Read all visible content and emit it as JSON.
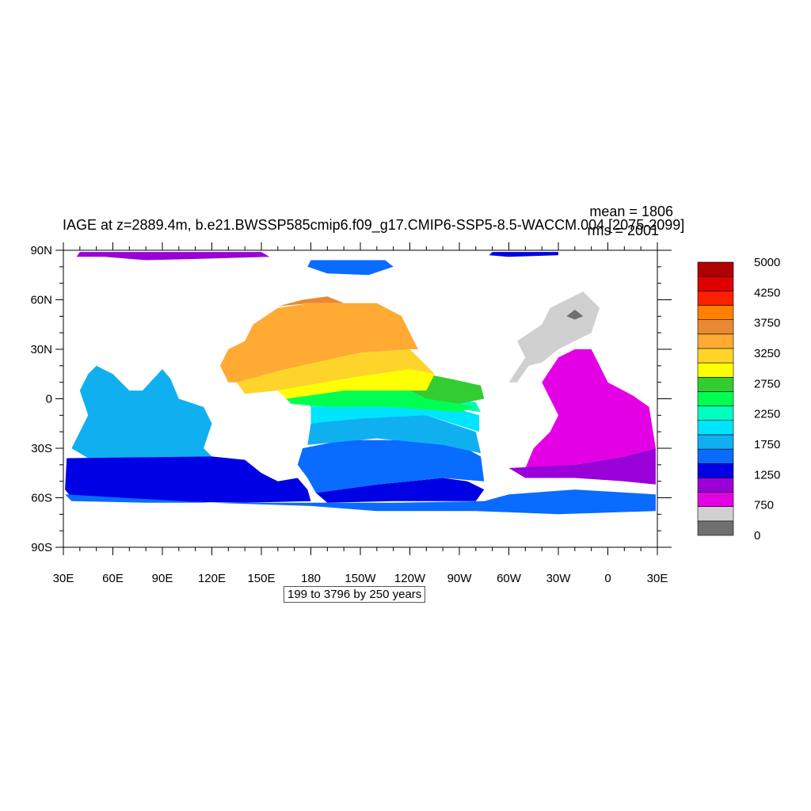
{
  "chart_data": {
    "type": "heatmap",
    "title": "IAGE at z=2889.4m, b.e21.BWSSP585cmip6.f09_g17.CMIP6-SSP5-8.5-WACCM.004 [2075-2099]",
    "stats": {
      "mean": "mean = 1806",
      "rms": "rms = 2001"
    },
    "contour_info": "199 to 3796 by 250 years",
    "x_ticks": [
      "30E",
      "60E",
      "90E",
      "120E",
      "150E",
      "180",
      "150W",
      "120W",
      "90W",
      "60W",
      "30W",
      "0",
      "30E"
    ],
    "y_ticks": [
      "90N",
      "60N",
      "30N",
      "0",
      "30S",
      "60S",
      "90S"
    ],
    "xlim_degE": [
      30,
      390
    ],
    "ylim_deg": [
      -90,
      90
    ],
    "colorbar": {
      "colors": [
        "#6f6f6f",
        "#d0d0d0",
        "#e400e4",
        "#9a00d8",
        "#0000e4",
        "#0a6bff",
        "#10b0f0",
        "#00e5ff",
        "#00ffc0",
        "#00ff50",
        "#33cc33",
        "#ffff00",
        "#ffd42a",
        "#ffaa33",
        "#e88a33",
        "#ff8000",
        "#ff2000",
        "#e00000",
        "#b00000"
      ],
      "labels": [
        "0",
        "750",
        "1250",
        "1750",
        "2250",
        "2750",
        "3250",
        "3750",
        "4250",
        "5000"
      ]
    },
    "regions": [
      {
        "name": "arctic-band",
        "color": "#9a00d8",
        "points": [
          [
            40,
            89
          ],
          [
            150,
            89
          ],
          [
            155,
            86
          ],
          [
            120,
            85
          ],
          [
            80,
            84
          ],
          [
            55,
            86
          ],
          [
            38,
            86
          ]
        ]
      },
      {
        "name": "arctic-blue",
        "color": "#0000e4",
        "points": [
          [
            290,
            89
          ],
          [
            330,
            89
          ],
          [
            330,
            87
          ],
          [
            300,
            86
          ],
          [
            288,
            87
          ]
        ]
      },
      {
        "name": "arctic-lightblue",
        "color": "#0a6bff",
        "points": [
          [
            180,
            84
          ],
          [
            225,
            84
          ],
          [
            230,
            80
          ],
          [
            215,
            75
          ],
          [
            190,
            76
          ],
          [
            178,
            80
          ]
        ]
      },
      {
        "name": "indian-ocean",
        "color": "#10b0f0",
        "points": [
          [
            50,
            20
          ],
          [
            60,
            15
          ],
          [
            70,
            5
          ],
          [
            78,
            5
          ],
          [
            90,
            18
          ],
          [
            95,
            12
          ],
          [
            100,
            0
          ],
          [
            115,
            -5
          ],
          [
            120,
            -15
          ],
          [
            115,
            -30
          ],
          [
            120,
            -35
          ],
          [
            80,
            -36
          ],
          [
            45,
            -36
          ],
          [
            35,
            -30
          ],
          [
            40,
            -20
          ],
          [
            45,
            -10
          ],
          [
            40,
            5
          ],
          [
            45,
            15
          ]
        ]
      },
      {
        "name": "southern-indian-blue",
        "color": "#0000e4",
        "points": [
          [
            32,
            -36
          ],
          [
            120,
            -35
          ],
          [
            140,
            -37
          ],
          [
            150,
            -45
          ],
          [
            160,
            -50
          ],
          [
            172,
            -48
          ],
          [
            178,
            -55
          ],
          [
            180,
            -62
          ],
          [
            140,
            -63
          ],
          [
            80,
            -62
          ],
          [
            35,
            -60
          ],
          [
            31,
            -55
          ]
        ]
      },
      {
        "name": "south-pacific-deep-blue",
        "color": "#0000e4",
        "points": [
          [
            183,
            -57
          ],
          [
            220,
            -52
          ],
          [
            260,
            -48
          ],
          [
            275,
            -50
          ],
          [
            285,
            -55
          ],
          [
            280,
            -62
          ],
          [
            230,
            -62
          ],
          [
            190,
            -63
          ]
        ]
      },
      {
        "name": "southern-outer-lightblue",
        "color": "#0a6bff",
        "points": [
          [
            31,
            -58
          ],
          [
            120,
            -63
          ],
          [
            180,
            -65
          ],
          [
            220,
            -68
          ],
          [
            280,
            -68
          ],
          [
            330,
            -70
          ],
          [
            389,
            -68
          ],
          [
            389,
            -58
          ],
          [
            340,
            -55
          ],
          [
            300,
            -58
          ],
          [
            285,
            -62
          ],
          [
            230,
            -63
          ],
          [
            180,
            -63
          ],
          [
            80,
            -63
          ],
          [
            35,
            -62
          ]
        ]
      },
      {
        "name": "south-pacific-mid-blue",
        "color": "#0a6bff",
        "points": [
          [
            175,
            -30
          ],
          [
            200,
            -25
          ],
          [
            240,
            -25
          ],
          [
            270,
            -28
          ],
          [
            283,
            -35
          ],
          [
            285,
            -50
          ],
          [
            260,
            -48
          ],
          [
            220,
            -52
          ],
          [
            183,
            -57
          ],
          [
            178,
            -48
          ],
          [
            172,
            -40
          ]
        ]
      },
      {
        "name": "south-pacific-sky",
        "color": "#10b0f0",
        "points": [
          [
            180,
            -15
          ],
          [
            210,
            -10
          ],
          [
            250,
            -10
          ],
          [
            280,
            -20
          ],
          [
            283,
            -33
          ],
          [
            260,
            -28
          ],
          [
            220,
            -24
          ],
          [
            178,
            -28
          ]
        ]
      },
      {
        "name": "tropical-cyan",
        "color": "#00e5ff",
        "points": [
          [
            180,
            -5
          ],
          [
            230,
            -3
          ],
          [
            265,
            -5
          ],
          [
            282,
            -10
          ],
          [
            282,
            -20
          ],
          [
            250,
            -10
          ],
          [
            210,
            -12
          ],
          [
            180,
            -15
          ]
        ]
      },
      {
        "name": "tropical-teal",
        "color": "#00ffc0",
        "points": [
          [
            175,
            0
          ],
          [
            220,
            2
          ],
          [
            260,
            0
          ],
          [
            280,
            -2
          ],
          [
            283,
            -8
          ],
          [
            260,
            -5
          ],
          [
            230,
            -3
          ],
          [
            180,
            -5
          ]
        ]
      },
      {
        "name": "eastern-pacific-green",
        "color": "#33cc33",
        "points": [
          [
            250,
            15
          ],
          [
            265,
            12
          ],
          [
            283,
            8
          ],
          [
            285,
            0
          ],
          [
            270,
            -3
          ],
          [
            250,
            0
          ],
          [
            240,
            5
          ]
        ]
      },
      {
        "name": "equatorial-bright-green",
        "color": "#00ff50",
        "points": [
          [
            165,
            0
          ],
          [
            200,
            5
          ],
          [
            240,
            5
          ],
          [
            250,
            0
          ],
          [
            270,
            -3
          ],
          [
            280,
            -5
          ],
          [
            270,
            -8
          ],
          [
            230,
            -5
          ],
          [
            190,
            -5
          ],
          [
            168,
            -3
          ]
        ]
      },
      {
        "name": "pacific-yellow",
        "color": "#ffff00",
        "points": [
          [
            160,
            5
          ],
          [
            200,
            12
          ],
          [
            240,
            18
          ],
          [
            255,
            15
          ],
          [
            250,
            5
          ],
          [
            240,
            5
          ],
          [
            200,
            5
          ],
          [
            165,
            0
          ]
        ]
      },
      {
        "name": "pacific-gold",
        "color": "#ffd42a",
        "points": [
          [
            135,
            10
          ],
          [
            165,
            18
          ],
          [
            210,
            28
          ],
          [
            240,
            30
          ],
          [
            250,
            20
          ],
          [
            255,
            15
          ],
          [
            240,
            18
          ],
          [
            200,
            12
          ],
          [
            160,
            5
          ],
          [
            140,
            3
          ]
        ]
      },
      {
        "name": "north-pacific-orange",
        "color": "#ffaa33",
        "points": [
          [
            130,
            10
          ],
          [
            125,
            20
          ],
          [
            130,
            30
          ],
          [
            140,
            35
          ],
          [
            145,
            45
          ],
          [
            160,
            55
          ],
          [
            180,
            58
          ],
          [
            200,
            58
          ],
          [
            220,
            58
          ],
          [
            235,
            50
          ],
          [
            240,
            40
          ],
          [
            245,
            30
          ],
          [
            240,
            30
          ],
          [
            210,
            28
          ],
          [
            165,
            18
          ],
          [
            135,
            10
          ]
        ]
      },
      {
        "name": "north-pacific-deep-orange",
        "color": "#e88a33",
        "points": [
          [
            160,
            56
          ],
          [
            175,
            60
          ],
          [
            190,
            62
          ],
          [
            200,
            58
          ],
          [
            180,
            58
          ]
        ]
      },
      {
        "name": "north-atlantic-gray",
        "color": "#d0d0d0",
        "points": [
          [
            300,
            10
          ],
          [
            310,
            25
          ],
          [
            305,
            35
          ],
          [
            320,
            45
          ],
          [
            325,
            55
          ],
          [
            335,
            60
          ],
          [
            345,
            65
          ],
          [
            355,
            55
          ],
          [
            350,
            40
          ],
          [
            340,
            35
          ],
          [
            330,
            30
          ],
          [
            320,
            22
          ],
          [
            312,
            20
          ],
          [
            305,
            10
          ]
        ]
      },
      {
        "name": "arctic-gray-patch",
        "color": "#6f6f6f",
        "points": [
          [
            335,
            50
          ],
          [
            340,
            54
          ],
          [
            345,
            50
          ],
          [
            340,
            48
          ]
        ]
      },
      {
        "name": "south-atlantic-magenta",
        "color": "#e400e4",
        "points": [
          [
            320,
            10
          ],
          [
            330,
            25
          ],
          [
            340,
            30
          ],
          [
            350,
            30
          ],
          [
            355,
            20
          ],
          [
            360,
            10
          ],
          [
            375,
            2
          ],
          [
            385,
            -5
          ],
          [
            389,
            -30
          ],
          [
            370,
            -35
          ],
          [
            340,
            -40
          ],
          [
            310,
            -42
          ],
          [
            315,
            -30
          ],
          [
            325,
            -20
          ],
          [
            330,
            -10
          ],
          [
            325,
            0
          ]
        ]
      },
      {
        "name": "south-atlantic-violet",
        "color": "#9a00d8",
        "points": [
          [
            300,
            -42
          ],
          [
            340,
            -40
          ],
          [
            370,
            -35
          ],
          [
            389,
            -30
          ],
          [
            389,
            -52
          ],
          [
            370,
            -50
          ],
          [
            340,
            -48
          ],
          [
            310,
            -48
          ]
        ]
      }
    ]
  }
}
